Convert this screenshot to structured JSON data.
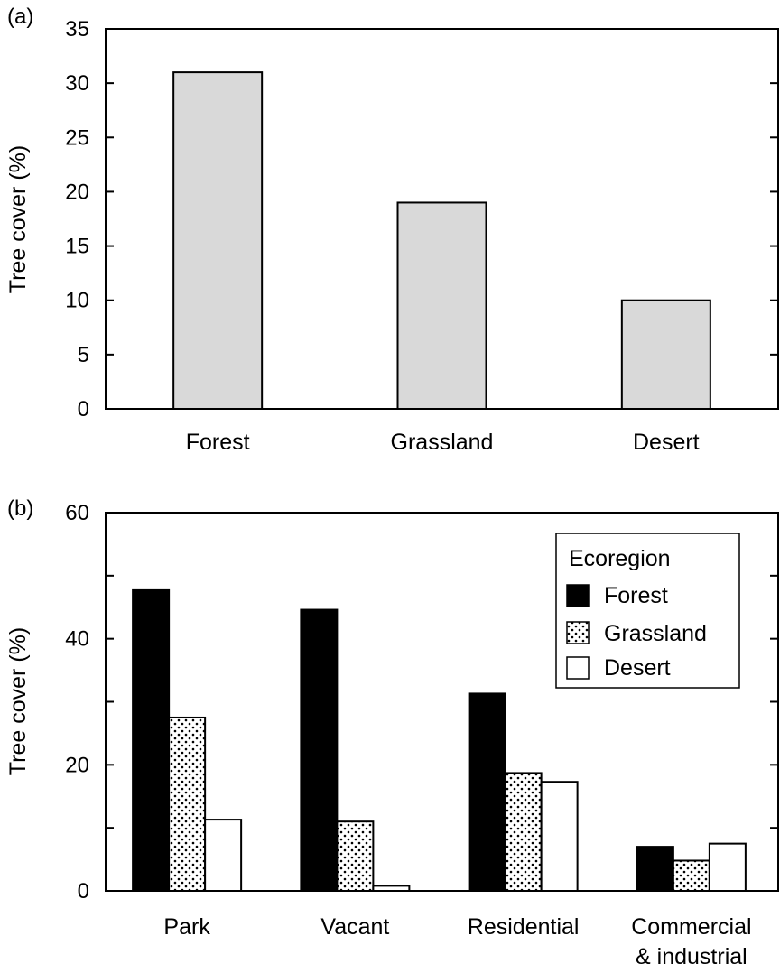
{
  "figure": {
    "panels": [
      {
        "label": "(a)"
      },
      {
        "label": "(b)"
      }
    ]
  },
  "colors": {
    "panel_a_bar": "#d9d9d9",
    "forest": "#000000",
    "grassland_pattern": "dotted",
    "desert": "#ffffff",
    "axis": "#000000"
  },
  "chart_data": [
    {
      "type": "bar",
      "panel": "(a)",
      "categories": [
        "Forest",
        "Grassland",
        "Desert"
      ],
      "values": [
        31,
        19,
        10
      ],
      "ylabel": "Tree cover (%)",
      "xlabel": "",
      "ylim": [
        0,
        35
      ],
      "yticks": [
        0,
        5,
        10,
        15,
        20,
        25,
        30,
        35
      ],
      "grid": false
    },
    {
      "type": "bar",
      "panel": "(b)",
      "categories": [
        "Park",
        "Vacant",
        "Residential",
        "Commercial\n& industrial"
      ],
      "series": [
        {
          "name": "Forest",
          "values": [
            47.7,
            44.6,
            31.3,
            7.0
          ]
        },
        {
          "name": "Grassland",
          "values": [
            27.5,
            11.0,
            18.7,
            4.8
          ]
        },
        {
          "name": "Desert",
          "values": [
            11.3,
            0.8,
            17.3,
            7.5
          ]
        }
      ],
      "ylabel": "Tree cover (%)",
      "xlabel": "",
      "ylim": [
        0,
        60
      ],
      "yticks": [
        0,
        20,
        40,
        60
      ],
      "minor_yticks": [
        10,
        30,
        50
      ],
      "legend": {
        "title": "Ecoregion",
        "placement": "top-right"
      },
      "grid": false
    }
  ]
}
